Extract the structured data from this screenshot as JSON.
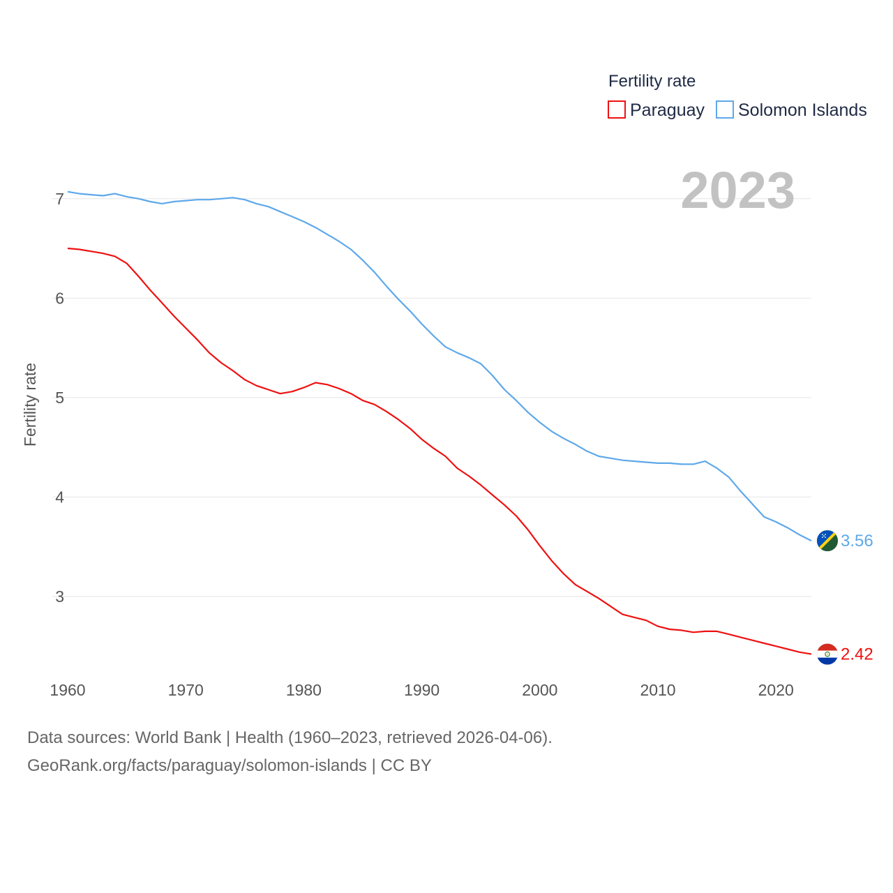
{
  "chart_data": {
    "type": "line",
    "legend_title": "Fertility rate",
    "ylabel": "Fertility rate",
    "year_label": "2023",
    "x_ticks": [
      1960,
      1970,
      1980,
      1990,
      2000,
      2010,
      2020
    ],
    "y_ticks": [
      3,
      4,
      5,
      6,
      7
    ],
    "xlim": [
      1960,
      2023
    ],
    "ylim": [
      2.2,
      7.3
    ],
    "series": [
      {
        "name": "Paraguay",
        "color": "#ee1111",
        "flag": "paraguay-flag",
        "end_label": "2.42",
        "x": [
          1960,
          1961,
          1962,
          1963,
          1964,
          1965,
          1966,
          1967,
          1968,
          1969,
          1970,
          1971,
          1972,
          1973,
          1974,
          1975,
          1976,
          1977,
          1978,
          1979,
          1980,
          1981,
          1982,
          1983,
          1984,
          1985,
          1986,
          1987,
          1988,
          1989,
          1990,
          1991,
          1992,
          1993,
          1994,
          1995,
          1996,
          1997,
          1998,
          1999,
          2000,
          2001,
          2002,
          2003,
          2004,
          2005,
          2006,
          2007,
          2008,
          2009,
          2010,
          2011,
          2012,
          2013,
          2014,
          2015,
          2016,
          2017,
          2018,
          2019,
          2020,
          2021,
          2022,
          2023
        ],
        "values": [
          6.5,
          6.49,
          6.47,
          6.45,
          6.42,
          6.35,
          6.22,
          6.08,
          5.95,
          5.82,
          5.7,
          5.58,
          5.45,
          5.35,
          5.27,
          5.18,
          5.12,
          5.08,
          5.04,
          5.06,
          5.1,
          5.15,
          5.13,
          5.09,
          5.04,
          4.97,
          4.93,
          4.86,
          4.78,
          4.69,
          4.58,
          4.49,
          4.41,
          4.29,
          4.21,
          4.12,
          4.02,
          3.92,
          3.81,
          3.67,
          3.51,
          3.36,
          3.23,
          3.12,
          3.05,
          2.98,
          2.9,
          2.82,
          2.79,
          2.76,
          2.7,
          2.67,
          2.66,
          2.64,
          2.65,
          2.65,
          2.62,
          2.59,
          2.56,
          2.53,
          2.5,
          2.47,
          2.44,
          2.42
        ]
      },
      {
        "name": "Solomon Islands",
        "color": "#5ea8ea",
        "flag": "solomon-islands-flag",
        "end_label": "3.56",
        "x": [
          1960,
          1961,
          1962,
          1963,
          1964,
          1965,
          1966,
          1967,
          1968,
          1969,
          1970,
          1971,
          1972,
          1973,
          1974,
          1975,
          1976,
          1977,
          1978,
          1979,
          1980,
          1981,
          1982,
          1983,
          1984,
          1985,
          1986,
          1987,
          1988,
          1989,
          1990,
          1991,
          1992,
          1993,
          1994,
          1995,
          1996,
          1997,
          1998,
          1999,
          2000,
          2001,
          2002,
          2003,
          2004,
          2005,
          2006,
          2007,
          2008,
          2009,
          2010,
          2011,
          2012,
          2013,
          2014,
          2015,
          2016,
          2017,
          2018,
          2019,
          2020,
          2021,
          2022,
          2023
        ],
        "values": [
          7.07,
          7.05,
          7.04,
          7.03,
          7.05,
          7.02,
          7.0,
          6.97,
          6.95,
          6.97,
          6.98,
          6.99,
          6.99,
          7.0,
          7.01,
          6.99,
          6.95,
          6.92,
          6.87,
          6.82,
          6.77,
          6.71,
          6.64,
          6.57,
          6.49,
          6.38,
          6.26,
          6.12,
          5.99,
          5.87,
          5.74,
          5.62,
          5.51,
          5.45,
          5.4,
          5.34,
          5.22,
          5.08,
          4.97,
          4.85,
          4.75,
          4.66,
          4.59,
          4.53,
          4.46,
          4.41,
          4.39,
          4.37,
          4.36,
          4.35,
          4.34,
          4.34,
          4.33,
          4.33,
          4.36,
          4.29,
          4.2,
          4.06,
          3.93,
          3.8,
          3.75,
          3.69,
          3.62,
          3.56
        ]
      }
    ]
  },
  "footer": {
    "source_line": "Data sources: World Bank | Health (1960–2023, retrieved 2026-04-06).",
    "attribution_line": "GeoRank.org/facts/paraguay/solomon-islands | CC BY"
  }
}
